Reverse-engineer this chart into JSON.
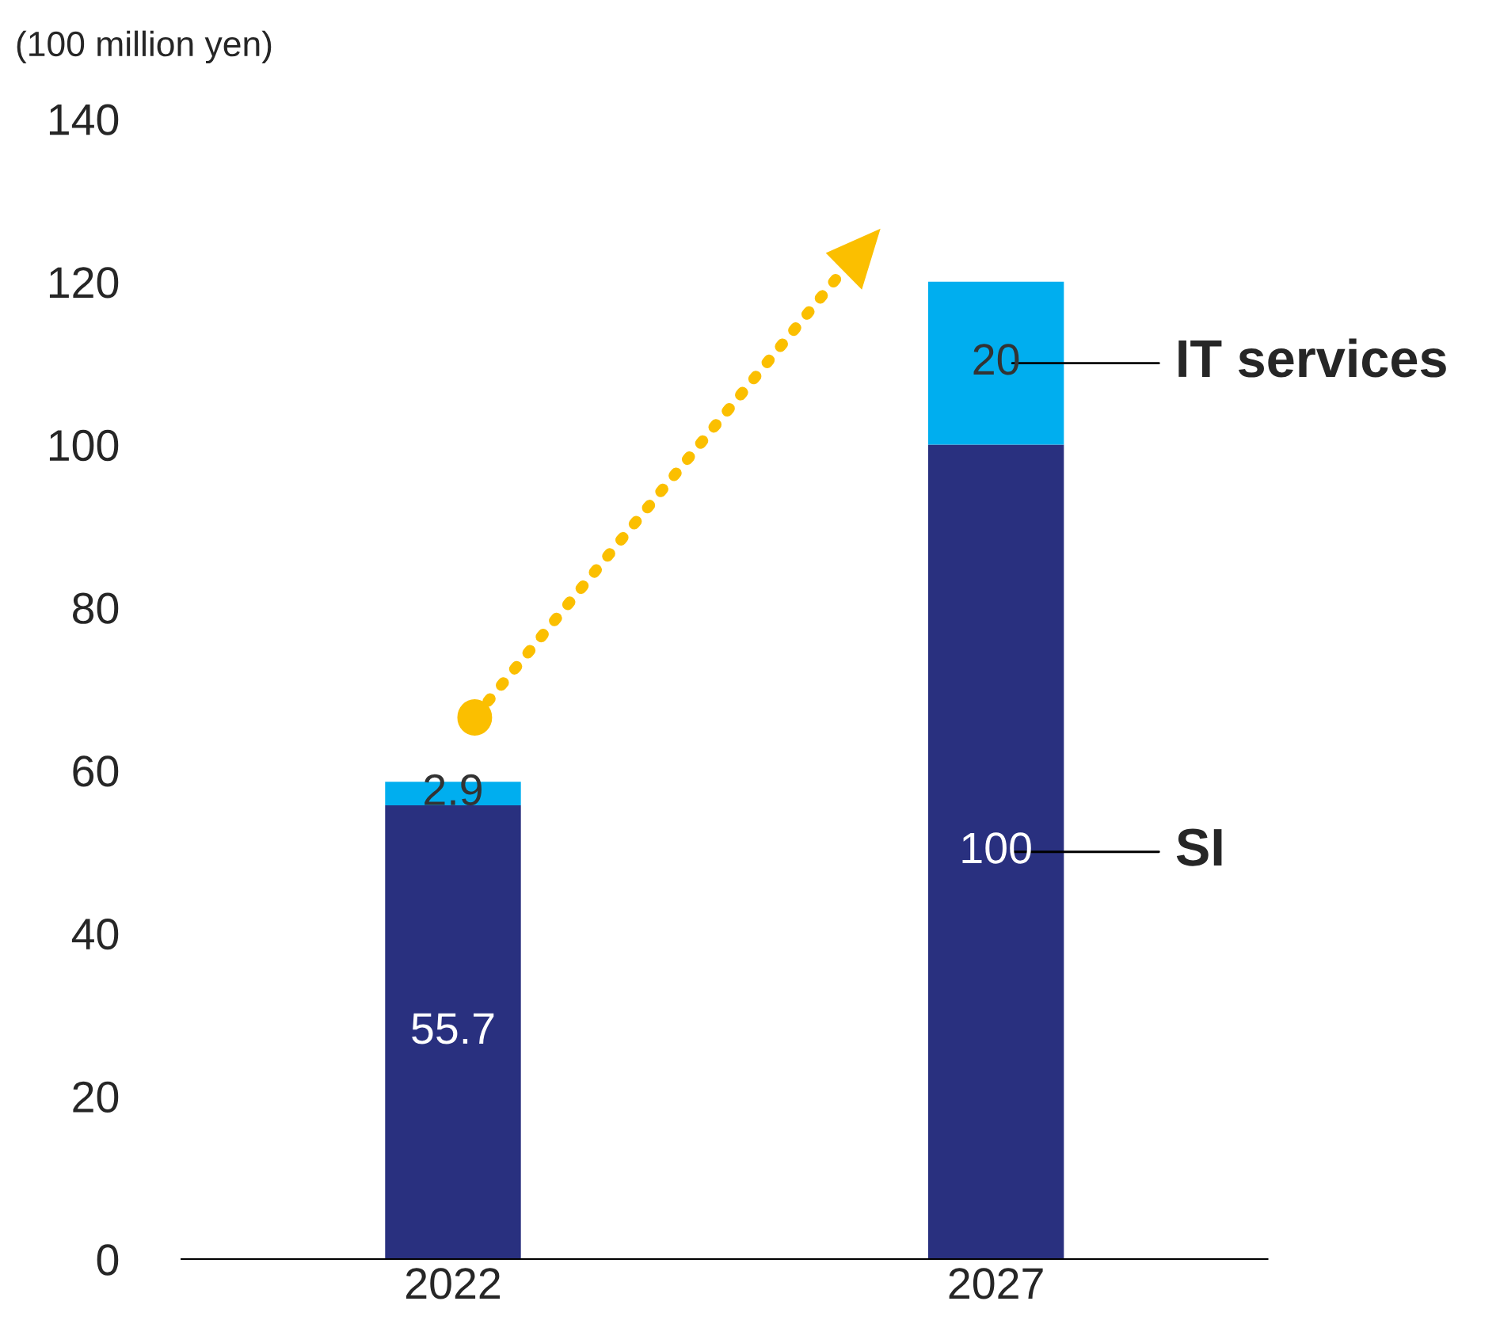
{
  "chart_data": {
    "type": "bar",
    "stacked": true,
    "ylabel": "(100 million yen)",
    "categories": [
      "2022",
      "2027"
    ],
    "series": [
      {
        "name": "SI",
        "color": "#29307f",
        "values": [
          55.7,
          100
        ]
      },
      {
        "name": "IT services",
        "color": "#00aeef",
        "values": [
          2.9,
          20
        ]
      }
    ],
    "ylim": [
      0,
      140
    ],
    "yticks": [
      0,
      20,
      40,
      60,
      80,
      100,
      120,
      140
    ],
    "grid": false,
    "data_labels": true
  }
}
